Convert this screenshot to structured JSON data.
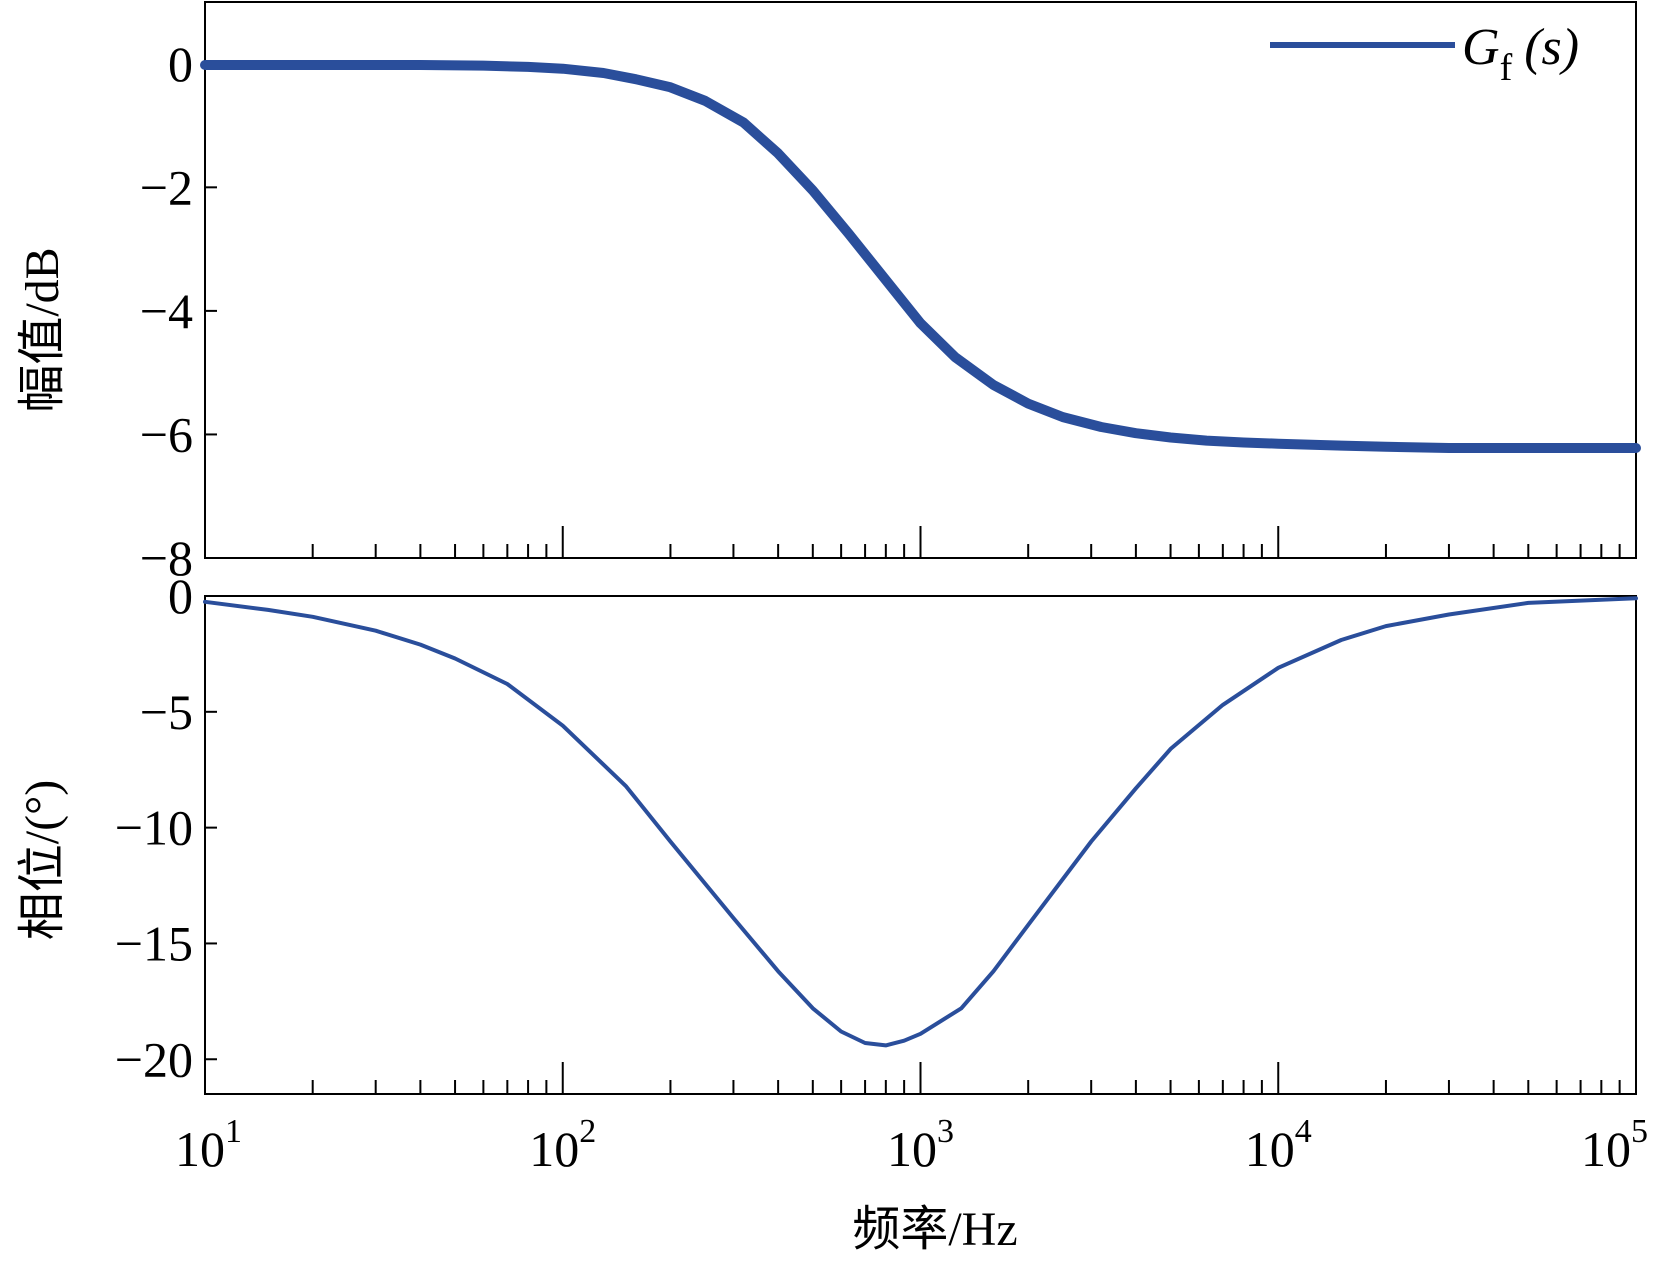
{
  "chart_data": [
    {
      "type": "line",
      "panel": "magnitude",
      "xlabel": "",
      "ylabel": "幅值/dB",
      "xscale": "log",
      "xlim": [
        10,
        100000
      ],
      "ylim": [
        -8,
        1
      ],
      "yticks": [
        "0",
        "−2",
        "−4",
        "−6",
        "−8"
      ],
      "ytick_values": [
        0,
        -2,
        -4,
        -6,
        -8
      ],
      "legend": {
        "placement": "top-right",
        "label_main": "G",
        "label_sub": "f",
        "label_arg": "(s)"
      },
      "color": "#2a4e9b",
      "series": [
        {
          "name": "Gf(s)",
          "x": [
            10,
            20,
            40,
            60,
            80,
            100,
            130,
            160,
            200,
            250,
            320,
            400,
            500,
            630,
            800,
            1000,
            1250,
            1600,
            2000,
            2500,
            3200,
            4000,
            5000,
            6300,
            8000,
            10000,
            15000,
            20000,
            30000,
            50000,
            100000
          ],
          "y": [
            -0.02,
            -0.02,
            -0.02,
            -0.03,
            -0.05,
            -0.08,
            -0.15,
            -0.25,
            -0.38,
            -0.6,
            -0.95,
            -1.45,
            -2.05,
            -2.75,
            -3.5,
            -4.2,
            -4.75,
            -5.2,
            -5.5,
            -5.72,
            -5.88,
            -5.98,
            -6.05,
            -6.1,
            -6.13,
            -6.15,
            -6.18,
            -6.2,
            -6.22,
            -6.22,
            -6.22
          ]
        }
      ]
    },
    {
      "type": "line",
      "panel": "phase",
      "xlabel": "频率/Hz",
      "ylabel": "相位/(°)",
      "xscale": "log",
      "xlim": [
        10,
        100000
      ],
      "ylim": [
        -21.5,
        0
      ],
      "xticks": [
        {
          "base": "10",
          "exp": "1"
        },
        {
          "base": "10",
          "exp": "2"
        },
        {
          "base": "10",
          "exp": "3"
        },
        {
          "base": "10",
          "exp": "4"
        },
        {
          "base": "10",
          "exp": "5"
        }
      ],
      "xtick_values": [
        10,
        100,
        1000,
        10000,
        100000
      ],
      "yticks": [
        "0",
        "−5",
        "−10",
        "−15",
        "−20"
      ],
      "ytick_values": [
        0,
        -5,
        -10,
        -15,
        -20
      ],
      "color": "#2a4e9b",
      "series": [
        {
          "name": "Gf(s)",
          "x": [
            10,
            15,
            20,
            30,
            40,
            50,
            70,
            100,
            150,
            200,
            300,
            400,
            500,
            600,
            700,
            800,
            900,
            1000,
            1300,
            1600,
            2000,
            3000,
            4000,
            5000,
            7000,
            10000,
            15000,
            20000,
            30000,
            50000,
            100000
          ],
          "y": [
            -0.25,
            -0.6,
            -0.9,
            -1.5,
            -2.1,
            -2.7,
            -3.8,
            -5.6,
            -8.2,
            -10.6,
            -13.9,
            -16.2,
            -17.8,
            -18.8,
            -19.3,
            -19.4,
            -19.2,
            -18.9,
            -17.8,
            -16.2,
            -14.2,
            -10.6,
            -8.3,
            -6.6,
            -4.7,
            -3.1,
            -1.9,
            -1.3,
            -0.8,
            -0.3,
            -0.1
          ]
        }
      ]
    }
  ]
}
